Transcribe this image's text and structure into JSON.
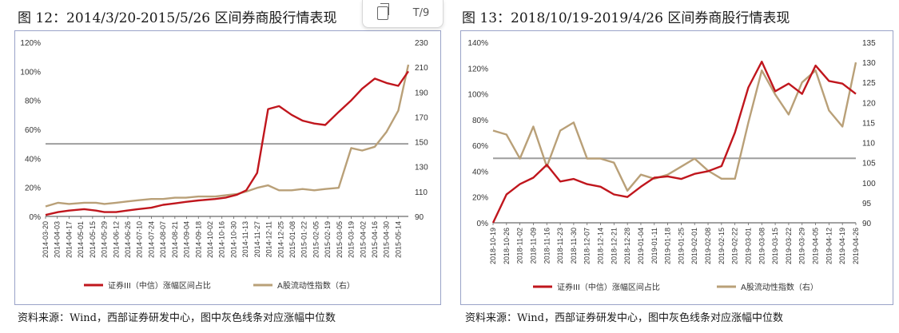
{
  "toolbar": {
    "copy_icon": "copy-icon",
    "translate_label": "T/9"
  },
  "figures": [
    {
      "title": "图 12：2014/3/20-2015/5/26 区间券商股行情表现",
      "source": "资料来源：Wind，西部证券研发中心，图中灰色线条对应涨幅中位数",
      "chart_data": {
        "type": "line",
        "x": [
          "2014-03-20",
          "2014-04-04",
          "2014-04-17",
          "2014-05-05",
          "2014-05-19",
          "2014-05-29",
          "2014-06-12",
          "2014-06-25",
          "2014-07-08",
          "2014-07-24",
          "2014-08-07",
          "2014-08-21",
          "2014-09-03",
          "2014-09-18",
          "2014-10-08",
          "2014-10-21",
          "2014-11-03",
          "2014-11-14",
          "2014-11-27",
          "2014-12-10",
          "2014-12-23",
          "2015-01-07",
          "2015-01-20",
          "2015-02-03",
          "2015-02-16",
          "2015-03-04",
          "2015-03-19",
          "2015-04-01",
          "2015-04-16",
          "2015-04-30",
          "2015-05-14",
          "2015-05-26"
        ],
        "xticks": [
          "2014-03-20",
          "2014-04-03",
          "2014-04-17",
          "2014-05-01",
          "2014-05-15",
          "2014-05-29",
          "2014-06-12",
          "2014-06-26",
          "2014-07-10",
          "2014-07-24",
          "2014-08-07",
          "2014-08-21",
          "2014-09-04",
          "2014-09-18",
          "2014-10-02",
          "2014-10-16",
          "2014-10-30",
          "2014-11-13",
          "2014-11-27",
          "2014-12-11",
          "2014-12-25",
          "2015-01-08",
          "2015-01-22",
          "2015-02-05",
          "2015-02-19",
          "2015-03-05",
          "2015-03-19",
          "2015-04-02",
          "2015-04-16",
          "2015-04-30",
          "2015-05-14"
        ],
        "series": [
          {
            "name": "证券III（中信）涨幅区间占比",
            "axis": "left",
            "color": "#c0161d",
            "values": [
              1,
              3,
              4,
              5,
              4,
              3,
              3,
              4,
              5,
              6,
              8,
              9,
              10,
              11,
              12,
              13,
              15,
              18,
              30,
              74,
              76,
              70,
              66,
              64,
              63,
              72,
              80,
              88,
              95,
              92,
              90,
              100
            ]
          },
          {
            "name": "A股流动性指数（右）",
            "axis": "right",
            "color": "#b9a078",
            "values": [
              98,
              101,
              100,
              101,
              101,
              100,
              101,
              102,
              103,
              104,
              104,
              105,
              105,
              106,
              106,
              107,
              108,
              110,
              113,
              115,
              111,
              111,
              112,
              111,
              112,
              113,
              145,
              143,
              146,
              158,
              175,
              212
            ]
          }
        ],
        "yleft": {
          "min": 0,
          "max": 120,
          "ticks": [
            0,
            20,
            40,
            60,
            80,
            100,
            120
          ],
          "format": "percent"
        },
        "yright": {
          "min": 90,
          "max": 230,
          "ticks": [
            90,
            110,
            130,
            150,
            170,
            190,
            210,
            230
          ]
        },
        "median_line": 50,
        "legend": "bottom"
      }
    },
    {
      "title": "图 13：2018/10/19-2019/4/26 区间券商股行情表现",
      "source": "资料来源：Wind，西部证券研发中心，图中灰色线条对应涨幅中位数",
      "chart_data": {
        "type": "line",
        "x": [
          "2018-10-19",
          "2018-10-26",
          "2018-11-02",
          "2018-11-09",
          "2018-11-16",
          "2018-11-23",
          "2018-11-30",
          "2018-12-07",
          "2018-12-14",
          "2018-12-21",
          "2018-12-28",
          "2019-01-04",
          "2019-01-11",
          "2019-01-18",
          "2019-01-25",
          "2019-02-01",
          "2019-02-08",
          "2019-02-15",
          "2019-02-22",
          "2019-03-01",
          "2019-03-08",
          "2019-03-15",
          "2019-03-22",
          "2019-03-29",
          "2019-04-05",
          "2019-04-12",
          "2019-04-19",
          "2019-04-26"
        ],
        "xticks": [
          "2018-10-19",
          "2018-10-26",
          "2018-11-02",
          "2018-11-09",
          "2018-11-16",
          "2018-11-23",
          "2018-11-30",
          "2018-12-07",
          "2018-12-14",
          "2018-12-21",
          "2018-12-28",
          "2019-01-04",
          "2019-01-11",
          "2019-01-18",
          "2019-01-25",
          "2019-02-01",
          "2019-02-08",
          "2019-02-15",
          "2019-02-22",
          "2019-03-01",
          "2019-03-08",
          "2019-03-15",
          "2019-03-22",
          "2019-03-29",
          "2019-04-05",
          "2019-04-12",
          "2019-04-19",
          "2019-04-26"
        ],
        "series": [
          {
            "name": "证券III（中信）涨幅区间占比",
            "axis": "left",
            "color": "#c0161d",
            "values": [
              0,
              22,
              30,
              35,
              45,
              32,
              34,
              30,
              28,
              22,
              20,
              28,
              35,
              36,
              34,
              38,
              40,
              44,
              70,
              105,
              125,
              102,
              108,
              100,
              122,
              110,
              108,
              100
            ]
          },
          {
            "name": "A股流动性指数（右）",
            "axis": "right",
            "color": "#b9a078",
            "values": [
              113,
              112,
              106,
              114,
              104,
              113,
              115,
              106,
              106,
              105,
              98,
              102,
              101,
              102,
              104,
              106,
              103,
              101,
              101,
              115,
              128,
              122,
              117,
              125,
              128,
              118,
              114,
              130
            ]
          }
        ],
        "yleft": {
          "min": 0,
          "max": 140,
          "ticks": [
            0,
            20,
            40,
            60,
            80,
            100,
            120,
            140
          ],
          "format": "percent"
        },
        "yright": {
          "min": 90,
          "max": 135,
          "ticks": [
            90,
            95,
            100,
            105,
            110,
            115,
            120,
            125,
            130,
            135
          ]
        },
        "median_line": 50,
        "legend": "bottom"
      }
    }
  ]
}
